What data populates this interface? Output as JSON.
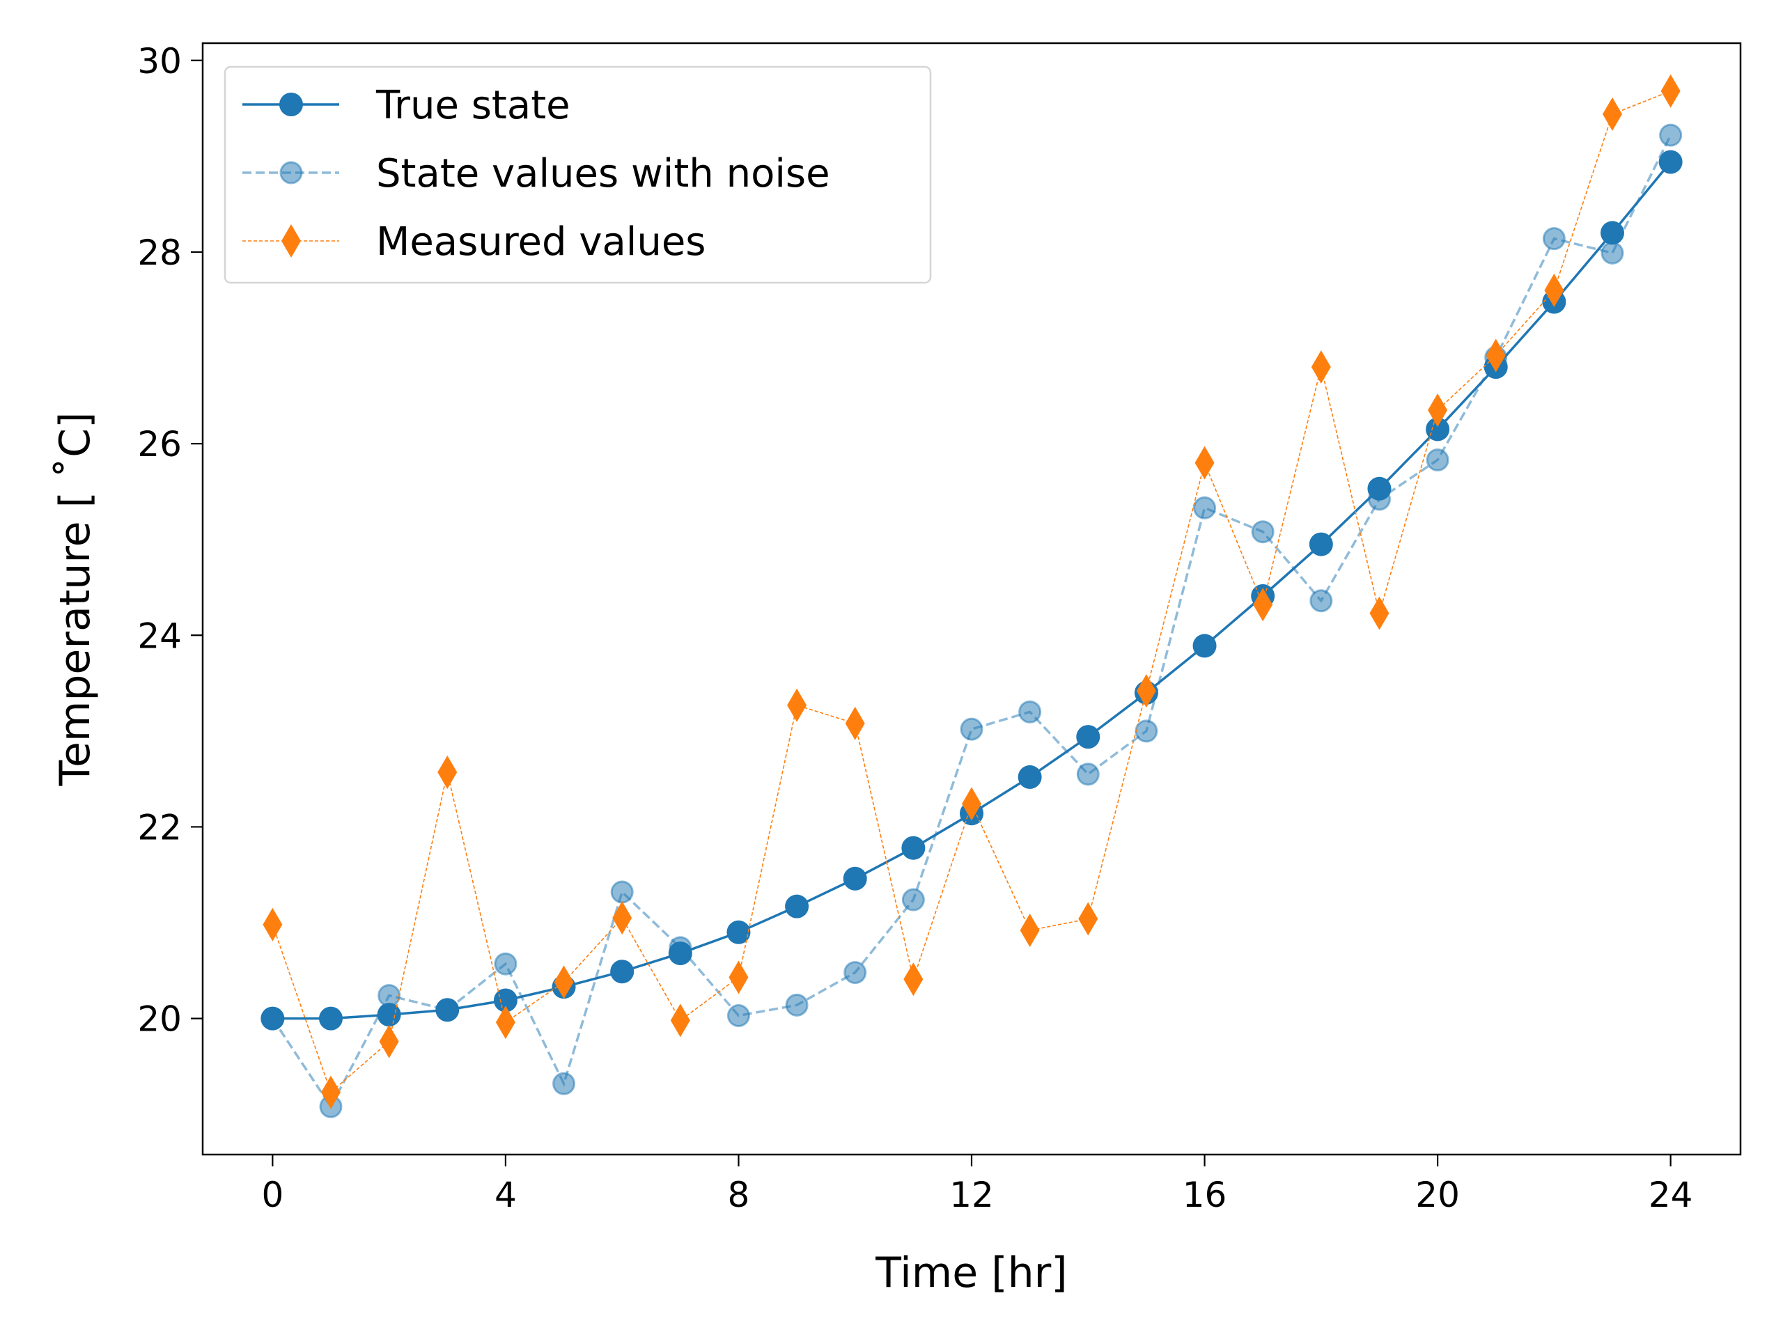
{
  "chart_data": {
    "type": "line",
    "title": "",
    "xlabel": "Time [hr]",
    "ylabel": "Temperature [$^\\circ$C]",
    "ylabel_display": "Temperature [ ˚C]",
    "xlim": [
      -1.2,
      25.2
    ],
    "ylim": [
      18.58,
      30.18
    ],
    "xticks": [
      0,
      4,
      8,
      12,
      16,
      20,
      24
    ],
    "xtick_labels": [
      "0",
      "4",
      "8",
      "12",
      "16",
      "20",
      "24"
    ],
    "yticks": [
      20,
      22,
      24,
      26,
      28,
      30
    ],
    "ytick_labels": [
      "20",
      "22",
      "24",
      "26",
      "28",
      "30"
    ],
    "grid": false,
    "legend_position": "top-left",
    "x": [
      0,
      1,
      2,
      3,
      4,
      5,
      6,
      7,
      8,
      9,
      10,
      11,
      12,
      13,
      14,
      15,
      16,
      17,
      18,
      19,
      20,
      21,
      22,
      23,
      24
    ],
    "series": [
      {
        "name": "True state",
        "color": "#1f77b4",
        "style": "solid",
        "marker": "circle",
        "values": [
          20.0,
          20.0,
          20.04,
          20.09,
          20.19,
          20.33,
          20.49,
          20.68,
          20.9,
          21.17,
          21.46,
          21.78,
          22.14,
          22.52,
          22.94,
          23.4,
          23.89,
          24.41,
          24.95,
          25.53,
          26.15,
          26.8,
          27.48,
          28.2,
          28.94
        ]
      },
      {
        "name": "State values with noise",
        "color": "#1f77b4",
        "opacity": 0.5,
        "style": "dashed",
        "marker": "circle",
        "values": [
          20.0,
          19.08,
          20.24,
          20.09,
          20.57,
          19.32,
          21.32,
          20.74,
          20.03,
          20.14,
          20.48,
          21.24,
          23.02,
          23.2,
          22.55,
          23.0,
          25.33,
          25.08,
          24.36,
          25.42,
          25.83,
          26.9,
          28.14,
          27.99,
          29.22
        ]
      },
      {
        "name": "Measured values",
        "color": "#ff7f0e",
        "style": "dotted",
        "marker": "thin-diamond",
        "values": [
          20.98,
          19.23,
          19.76,
          22.57,
          19.96,
          20.38,
          21.05,
          19.98,
          20.43,
          23.27,
          23.08,
          20.41,
          22.24,
          20.92,
          21.04,
          23.42,
          25.8,
          24.32,
          26.8,
          24.23,
          26.35,
          26.92,
          27.6,
          29.44,
          29.68
        ]
      }
    ]
  }
}
